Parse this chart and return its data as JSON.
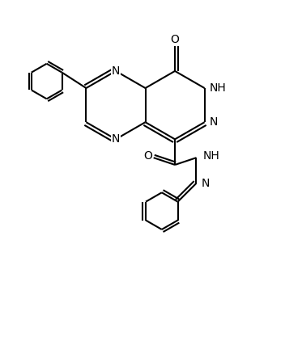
{
  "figsize": [
    3.52,
    4.22
  ],
  "dpi": 100,
  "lw": 1.5,
  "fs": 10,
  "xlim": [
    0,
    10
  ],
  "ylim": [
    0,
    12
  ]
}
